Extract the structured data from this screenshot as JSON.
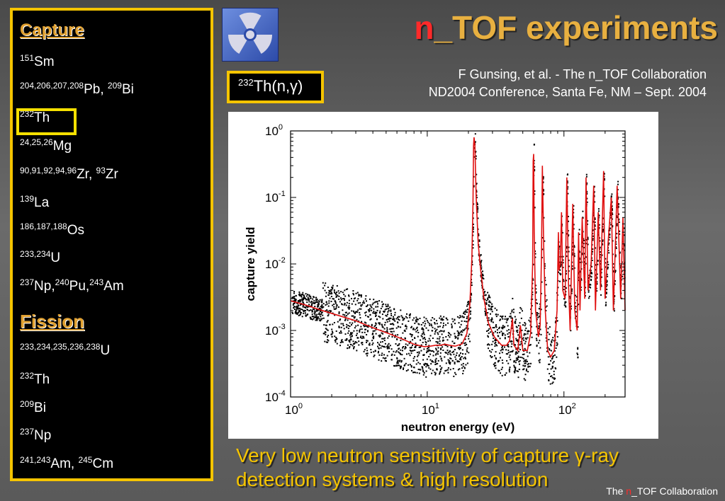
{
  "title": {
    "prefix": "n",
    "rest": "_TOF experiments"
  },
  "citation": {
    "line1": "F Gunsing, et al. - The n_TOF Collaboration",
    "line2": "ND2004 Conference, Santa Fe, NM – Sept. 2004"
  },
  "reaction_label": {
    "mass": "232",
    "text": "Th(n,γ)"
  },
  "left_panel": {
    "capture_heading": "Capture",
    "capture_items": [
      {
        "mass": "151",
        "text": "Sm"
      },
      {
        "mass": "204,206,207,208",
        "text": "Pb, ",
        "mass2": "209",
        "text2": "Bi"
      },
      {
        "mass": "232",
        "text": "Th"
      },
      {
        "mass": "24,25,26",
        "text": "Mg"
      },
      {
        "mass": "90,91,92,94,96",
        "text": "Zr, ",
        "mass2": "93",
        "text2": "Zr"
      },
      {
        "mass": "139",
        "text": "La"
      },
      {
        "mass": "186,187,188",
        "text": "Os"
      },
      {
        "mass": "233,234",
        "text": "U"
      },
      {
        "mass": "237",
        "text": "Np,",
        "mass2": "240",
        "text2": "Pu,",
        "mass3": "243",
        "text3": "Am"
      }
    ],
    "fission_heading": "Fission",
    "fission_items": [
      {
        "mass": "233,234,235,236,238",
        "text": "U"
      },
      {
        "mass": "232",
        "text": "Th"
      },
      {
        "mass": "209",
        "text": "Bi"
      },
      {
        "mass": "237",
        "text": "Np"
      },
      {
        "mass": "241,243",
        "text": "Am, ",
        "mass2": "245",
        "text2": "Cm"
      }
    ]
  },
  "caption": {
    "line1": "Very low neutron sensitivity of capture γ-ray",
    "line2": "detection systems & high resolution"
  },
  "footer": {
    "pre": "The ",
    "n": "n",
    "post": "_TOF Collaboration"
  },
  "colors": {
    "accent": "#f5c400",
    "title": "#e8b040",
    "red": "#ff2a2a",
    "fit": "#e01010"
  },
  "chart_data": {
    "type": "scatter",
    "xlabel": "neutron energy (eV)",
    "ylabel": "capture yield",
    "x_scale": "log",
    "y_scale": "log",
    "xlim": [
      1,
      280
    ],
    "ylim": [
      0.0001,
      1
    ],
    "x_ticks": [
      {
        "base": "10",
        "exp": "0"
      },
      {
        "base": "10",
        "exp": "1"
      },
      {
        "base": "10",
        "exp": "2"
      }
    ],
    "y_ticks": [
      {
        "base": "10",
        "exp": "0"
      },
      {
        "base": "10",
        "exp": "-1"
      },
      {
        "base": "10",
        "exp": "-2"
      },
      {
        "base": "10",
        "exp": "-3"
      },
      {
        "base": "10",
        "exp": "-4"
      }
    ],
    "series": [
      {
        "style": "red-line",
        "x": [
          1,
          1.3,
          1.7,
          2.2,
          3,
          4,
          5.2,
          6.5,
          8,
          9.5,
          10.5,
          11.5,
          12.5,
          13.5,
          14.5,
          16,
          18,
          19.5,
          20.5,
          21.2,
          21.6,
          21.8,
          22.0,
          22.3,
          22.8,
          23.6,
          24.6,
          26,
          28,
          31,
          35,
          38,
          40,
          42,
          43,
          46,
          48,
          50,
          54,
          57,
          59,
          59.5,
          60,
          60.6,
          62,
          65,
          67,
          68.5,
          69.5,
          71,
          73,
          76,
          80,
          85,
          89,
          91,
          92,
          94,
          96,
          98,
          102,
          105,
          108,
          111,
          113,
          116,
          120,
          125,
          128,
          131,
          136,
          142,
          145,
          150,
          158,
          165,
          170,
          178,
          185,
          195,
          200,
          210,
          222,
          230,
          245,
          260,
          270,
          280
        ],
        "y": [
          0.0028,
          0.0024,
          0.002,
          0.0017,
          0.0014,
          0.0011,
          0.0009,
          0.00075,
          0.00062,
          0.00057,
          0.00058,
          0.0006,
          0.0006,
          0.00062,
          0.0006,
          0.00058,
          0.00063,
          0.0009,
          0.0025,
          0.012,
          0.08,
          0.6,
          0.8,
          0.6,
          0.1,
          0.02,
          0.008,
          0.003,
          0.0013,
          0.0008,
          0.0006,
          0.0006,
          0.0007,
          0.0015,
          0.0006,
          0.0005,
          0.0012,
          0.0005,
          0.0005,
          0.0009,
          0.01,
          0.35,
          0.45,
          0.03,
          0.002,
          0.0008,
          0.0012,
          0.015,
          0.3,
          0.02,
          0.002,
          0.0005,
          0.0004,
          0.0005,
          0.002,
          0.03,
          0.008,
          0.01,
          0.06,
          0.004,
          0.003,
          0.2,
          0.005,
          0.001,
          0.006,
          0.08,
          0.002,
          0.001,
          0.03,
          0.002,
          0.05,
          0.003,
          0.2,
          0.004,
          0.01,
          0.15,
          0.002,
          0.06,
          0.004,
          0.25,
          0.003,
          0.02,
          0.1,
          0.002,
          0.15,
          0.003,
          0.05,
          0.002
        ]
      }
    ]
  }
}
